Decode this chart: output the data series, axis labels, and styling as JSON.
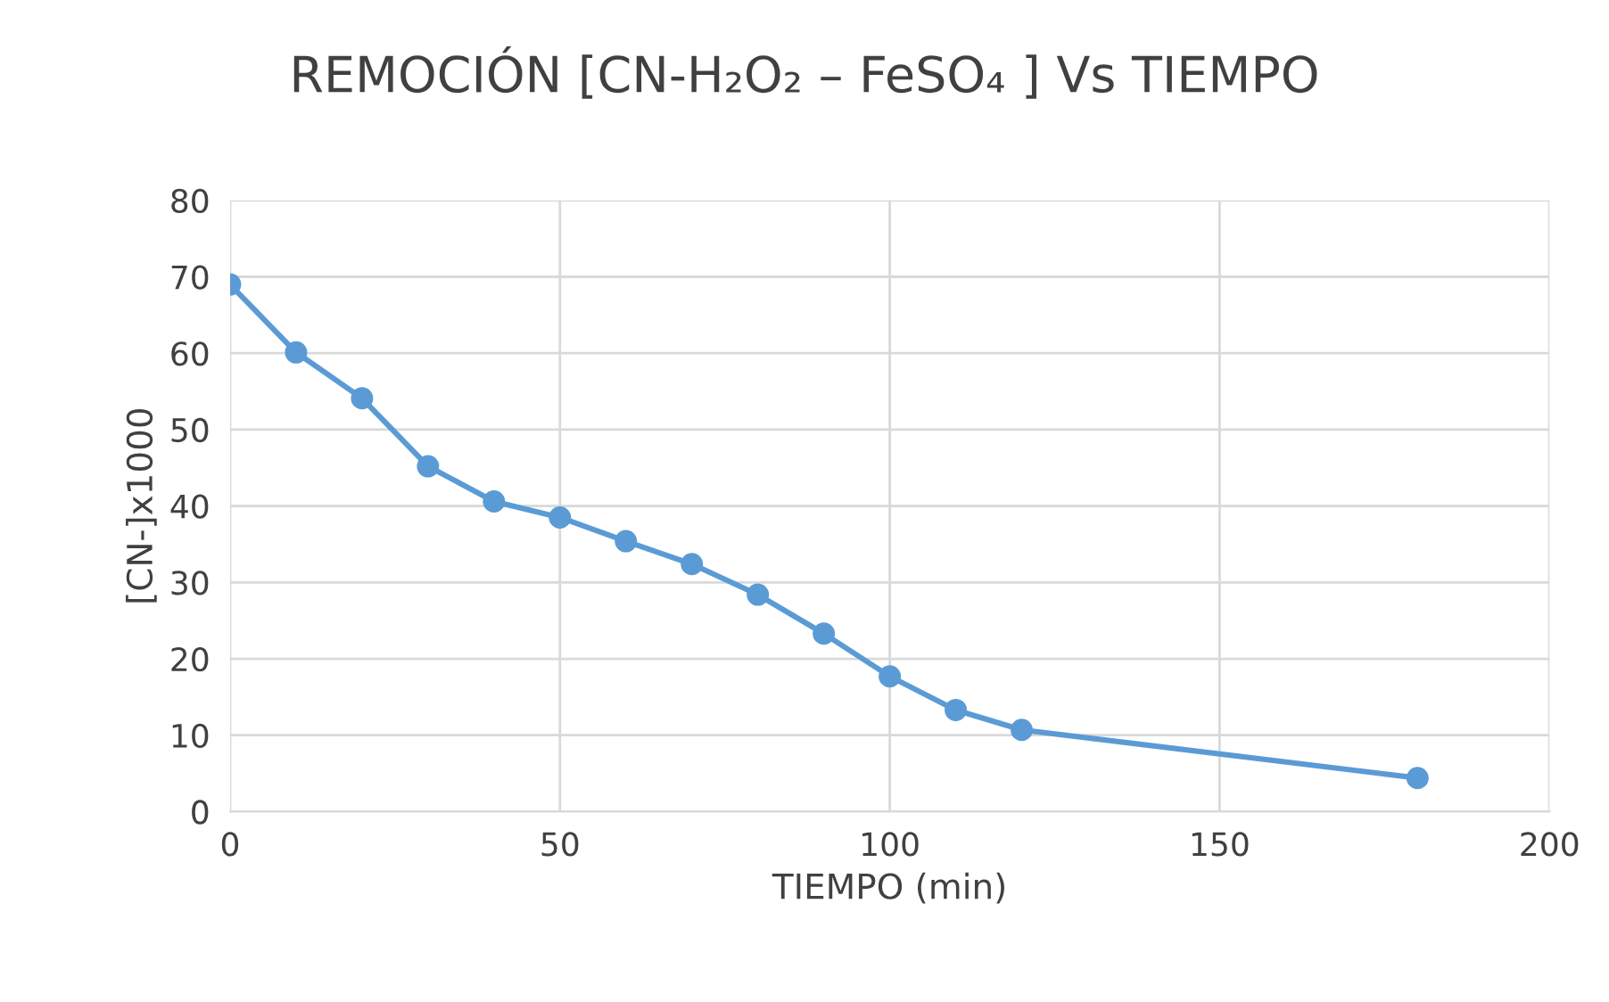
{
  "chart_data": {
    "type": "line",
    "title": "REMOCIÓN [CN-H₂O₂ – FeSO₄ ] Vs TIEMPO",
    "xlabel": "TIEMPO (min)",
    "ylabel": "[CN-]x1000",
    "x": [
      0,
      10,
      20,
      30,
      40,
      50,
      60,
      70,
      80,
      90,
      100,
      110,
      120,
      180
    ],
    "series": [
      {
        "color": "#5b9bd5",
        "values": [
          69.0,
          60.1,
          54.1,
          45.2,
          40.6,
          38.5,
          35.4,
          32.4,
          28.4,
          23.3,
          17.7,
          13.3,
          10.7,
          4.4
        ]
      }
    ],
    "xlim": [
      0,
      200
    ],
    "xticks": [
      0,
      50,
      100,
      150,
      200
    ],
    "ylim": [
      0,
      80
    ],
    "yticks": [
      0,
      10,
      20,
      30,
      40,
      50,
      60,
      70,
      80
    ],
    "grid": true,
    "marker": "circle",
    "line_style": "solid",
    "legend": false
  }
}
